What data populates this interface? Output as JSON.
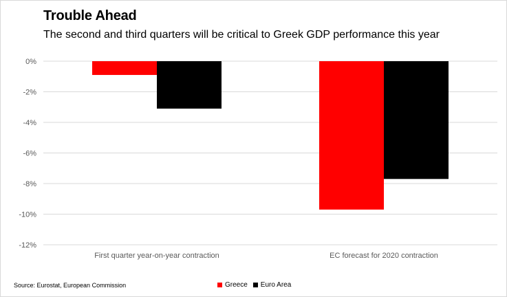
{
  "header": {
    "title": "Trouble Ahead",
    "subtitle": "The second and third quarters will be critical to Greek GDP performance this year"
  },
  "footer": {
    "source": "Source: Eurostat, European Commission"
  },
  "colors": {
    "greece": "#ff0000",
    "euro_area": "#000000",
    "grid": "#d9d9d9",
    "axis_text": "#595959"
  },
  "chart_data": {
    "type": "bar",
    "title": "Trouble Ahead",
    "subtitle": "The second and third quarters will be critical to Greek GDP performance this year",
    "categories": [
      "First quarter year-on-year contraction",
      "EC forecast for 2020 contraction"
    ],
    "series": [
      {
        "name": "Greece",
        "values": [
          -0.9,
          -9.7
        ],
        "color": "#ff0000"
      },
      {
        "name": "Euro Area",
        "values": [
          -3.1,
          -7.7
        ],
        "color": "#000000"
      }
    ],
    "yticks": [
      "0%",
      "-2%",
      "-4%",
      "-6%",
      "-8%",
      "-10%",
      "-12%"
    ],
    "ytick_values": [
      0,
      -2,
      -4,
      -6,
      -8,
      -10,
      -12
    ],
    "ylim": [
      -12,
      0
    ],
    "xlabel": "",
    "ylabel": "",
    "grid": true,
    "legend_position": "bottom"
  }
}
